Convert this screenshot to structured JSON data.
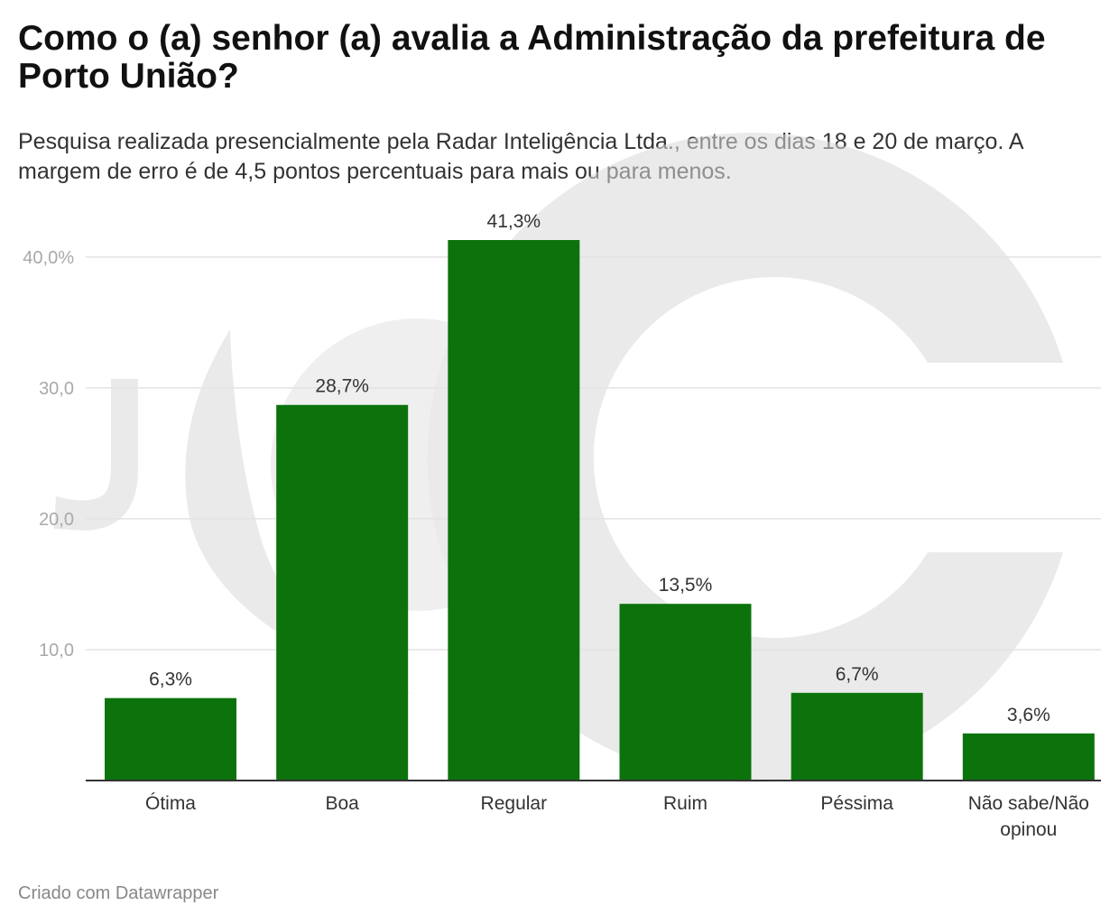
{
  "title": "Como o (a) senhor (a) avalia a Administração da prefeitura de Porto União?",
  "subtitle": "Pesquisa realizada presencialmente pela Radar Inteligência Ltda., entre os dias 18 e 20 de março. A margem de erro é de 4,5 pontos percentuais para mais ou para menos.",
  "footer": "Criado com Datawrapper",
  "watermark_text": "JC",
  "colors": {
    "bar": "#077007",
    "gridline": "#e3e3e3",
    "axis_line": "#333333",
    "tick_label": "#a9a9a9",
    "value_label": "#333333",
    "category_label": "#333333",
    "watermark": "#d9d9d9"
  },
  "chart_data": {
    "type": "bar",
    "categories": [
      "Ótima",
      "Boa",
      "Regular",
      "Ruim",
      "Péssima",
      "Não sabe/Não opinou"
    ],
    "values": [
      6.3,
      28.7,
      41.3,
      13.5,
      6.7,
      3.6
    ],
    "value_labels": [
      "6,3%",
      "28,7%",
      "41,3%",
      "13,5%",
      "6,7%",
      "3,6%"
    ],
    "yticks": [
      10,
      20,
      30,
      40
    ],
    "ytick_labels": [
      "10,0",
      "20,0",
      "30,0",
      "40,0%"
    ],
    "ylim": [
      0,
      41.3
    ],
    "grid": true
  }
}
